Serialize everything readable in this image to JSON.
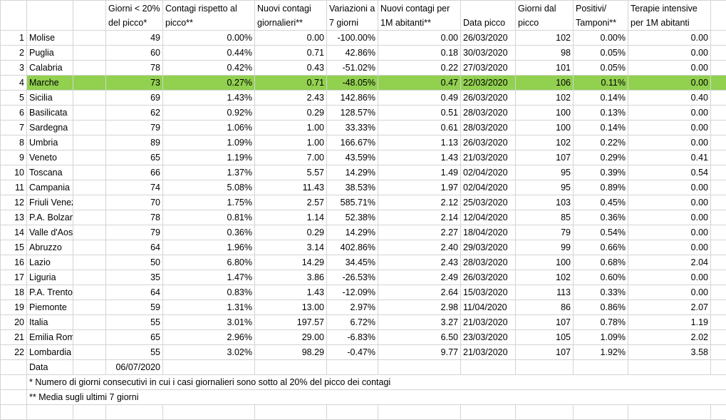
{
  "headers": {
    "days_below": "Giorni < 20% del picco*",
    "contagion_vs_peak": "Contagi rispetto al picco**",
    "new_daily": "Nuovi contagi giornalieri**",
    "var7": "Variazioni a 7 giorni",
    "new_per_1m": "Nuovi contagi per 1M abitanti**",
    "peak_date": "Data picco",
    "days_from_peak": "Giorni dal picco",
    "pos_tests": "Positivi/ Tamponi**",
    "icu_per_1m": "Terapie intensive per 1M abitanti"
  },
  "rows": [
    {
      "idx": "1",
      "region": "Molise",
      "days_below": "49",
      "contagion_vs_peak": "0.00%",
      "new_daily": "0.00",
      "var7": "-100.00%",
      "new_per_1m": "0.00",
      "peak_date": "26/03/2020",
      "days_from_peak": "102",
      "pos_tests": "0.00%",
      "icu_per_1m": "0.00"
    },
    {
      "idx": "2",
      "region": "Puglia",
      "days_below": "60",
      "contagion_vs_peak": "0.44%",
      "new_daily": "0.71",
      "var7": "42.86%",
      "new_per_1m": "0.18",
      "peak_date": "30/03/2020",
      "days_from_peak": "98",
      "pos_tests": "0.05%",
      "icu_per_1m": "0.00"
    },
    {
      "idx": "3",
      "region": "Calabria",
      "days_below": "78",
      "contagion_vs_peak": "0.42%",
      "new_daily": "0.43",
      "var7": "-51.02%",
      "new_per_1m": "0.22",
      "peak_date": "27/03/2020",
      "days_from_peak": "101",
      "pos_tests": "0.05%",
      "icu_per_1m": "0.00"
    },
    {
      "idx": "4",
      "region": "Marche",
      "days_below": "73",
      "contagion_vs_peak": "0.27%",
      "new_daily": "0.71",
      "var7": "-48.05%",
      "new_per_1m": "0.47",
      "peak_date": "22/03/2020",
      "days_from_peak": "106",
      "pos_tests": "0.11%",
      "icu_per_1m": "0.00",
      "highlight": true
    },
    {
      "idx": "5",
      "region": "Sicilia",
      "days_below": "69",
      "contagion_vs_peak": "1.43%",
      "new_daily": "2.43",
      "var7": "142.86%",
      "new_per_1m": "0.49",
      "peak_date": "26/03/2020",
      "days_from_peak": "102",
      "pos_tests": "0.14%",
      "icu_per_1m": "0.40"
    },
    {
      "idx": "6",
      "region": "Basilicata",
      "days_below": "62",
      "contagion_vs_peak": "0.92%",
      "new_daily": "0.29",
      "var7": "128.57%",
      "new_per_1m": "0.51",
      "peak_date": "28/03/2020",
      "days_from_peak": "100",
      "pos_tests": "0.13%",
      "icu_per_1m": "0.00"
    },
    {
      "idx": "7",
      "region": "Sardegna",
      "days_below": "79",
      "contagion_vs_peak": "1.06%",
      "new_daily": "1.00",
      "var7": "33.33%",
      "new_per_1m": "0.61",
      "peak_date": "28/03/2020",
      "days_from_peak": "100",
      "pos_tests": "0.14%",
      "icu_per_1m": "0.00"
    },
    {
      "idx": "8",
      "region": "Umbria",
      "days_below": "89",
      "contagion_vs_peak": "1.09%",
      "new_daily": "1.00",
      "var7": "166.67%",
      "new_per_1m": "1.13",
      "peak_date": "26/03/2020",
      "days_from_peak": "102",
      "pos_tests": "0.22%",
      "icu_per_1m": "0.00"
    },
    {
      "idx": "9",
      "region": "Veneto",
      "days_below": "65",
      "contagion_vs_peak": "1.19%",
      "new_daily": "7.00",
      "var7": "43.59%",
      "new_per_1m": "1.43",
      "peak_date": "21/03/2020",
      "days_from_peak": "107",
      "pos_tests": "0.29%",
      "icu_per_1m": "0.41"
    },
    {
      "idx": "10",
      "region": "Toscana",
      "days_below": "66",
      "contagion_vs_peak": "1.37%",
      "new_daily": "5.57",
      "var7": "14.29%",
      "new_per_1m": "1.49",
      "peak_date": "02/04/2020",
      "days_from_peak": "95",
      "pos_tests": "0.39%",
      "icu_per_1m": "0.54"
    },
    {
      "idx": "11",
      "region": "Campania",
      "days_below": "74",
      "contagion_vs_peak": "5.08%",
      "new_daily": "11.43",
      "var7": "38.53%",
      "new_per_1m": "1.97",
      "peak_date": "02/04/2020",
      "days_from_peak": "95",
      "pos_tests": "0.89%",
      "icu_per_1m": "0.00"
    },
    {
      "idx": "12",
      "region": "Friuli Venezia Giulia",
      "days_below": "70",
      "contagion_vs_peak": "1.75%",
      "new_daily": "2.57",
      "var7": "585.71%",
      "new_per_1m": "2.12",
      "peak_date": "25/03/2020",
      "days_from_peak": "103",
      "pos_tests": "0.45%",
      "icu_per_1m": "0.00"
    },
    {
      "idx": "13",
      "region": "P.A. Bolzano",
      "days_below": "78",
      "contagion_vs_peak": "0.81%",
      "new_daily": "1.14",
      "var7": "52.38%",
      "new_per_1m": "2.14",
      "peak_date": "12/04/2020",
      "days_from_peak": "85",
      "pos_tests": "0.36%",
      "icu_per_1m": "0.00"
    },
    {
      "idx": "14",
      "region": "Valle d'Aosta",
      "days_below": "79",
      "contagion_vs_peak": "0.36%",
      "new_daily": "0.29",
      "var7": "14.29%",
      "new_per_1m": "2.27",
      "peak_date": "18/04/2020",
      "days_from_peak": "79",
      "pos_tests": "0.54%",
      "icu_per_1m": "0.00"
    },
    {
      "idx": "15",
      "region": "Abruzzo",
      "days_below": "64",
      "contagion_vs_peak": "1.96%",
      "new_daily": "3.14",
      "var7": "402.86%",
      "new_per_1m": "2.40",
      "peak_date": "29/03/2020",
      "days_from_peak": "99",
      "pos_tests": "0.66%",
      "icu_per_1m": "0.00"
    },
    {
      "idx": "16",
      "region": "Lazio",
      "days_below": "50",
      "contagion_vs_peak": "6.80%",
      "new_daily": "14.29",
      "var7": "34.45%",
      "new_per_1m": "2.43",
      "peak_date": "28/03/2020",
      "days_from_peak": "100",
      "pos_tests": "0.68%",
      "icu_per_1m": "2.04"
    },
    {
      "idx": "17",
      "region": "Liguria",
      "days_below": "35",
      "contagion_vs_peak": "1.47%",
      "new_daily": "3.86",
      "var7": "-26.53%",
      "new_per_1m": "2.49",
      "peak_date": "26/03/2020",
      "days_from_peak": "102",
      "pos_tests": "0.60%",
      "icu_per_1m": "0.00"
    },
    {
      "idx": "18",
      "region": "P.A. Trento",
      "days_below": "64",
      "contagion_vs_peak": "0.83%",
      "new_daily": "1.43",
      "var7": "-12.09%",
      "new_per_1m": "2.64",
      "peak_date": "15/03/2020",
      "days_from_peak": "113",
      "pos_tests": "0.33%",
      "icu_per_1m": "0.00"
    },
    {
      "idx": "19",
      "region": "Piemonte",
      "days_below": "59",
      "contagion_vs_peak": "1.31%",
      "new_daily": "13.00",
      "var7": "2.97%",
      "new_per_1m": "2.98",
      "peak_date": "11/04/2020",
      "days_from_peak": "86",
      "pos_tests": "0.86%",
      "icu_per_1m": "2.07"
    },
    {
      "idx": "20",
      "region": "Italia",
      "days_below": "55",
      "contagion_vs_peak": "3.01%",
      "new_daily": "197.57",
      "var7": "6.72%",
      "new_per_1m": "3.27",
      "peak_date": "21/03/2020",
      "days_from_peak": "107",
      "pos_tests": "0.78%",
      "icu_per_1m": "1.19"
    },
    {
      "idx": "21",
      "region": "Emilia Romagna",
      "days_below": "65",
      "contagion_vs_peak": "2.96%",
      "new_daily": "29.00",
      "var7": "-6.83%",
      "new_per_1m": "6.50",
      "peak_date": "23/03/2020",
      "days_from_peak": "105",
      "pos_tests": "1.09%",
      "icu_per_1m": "2.02"
    },
    {
      "idx": "22",
      "region": "Lombardia",
      "days_below": "55",
      "contagion_vs_peak": "3.02%",
      "new_daily": "98.29",
      "var7": "-0.47%",
      "new_per_1m": "9.77",
      "peak_date": "21/03/2020",
      "days_from_peak": "107",
      "pos_tests": "1.92%",
      "icu_per_1m": "3.58"
    }
  ],
  "footer": {
    "date_label": "Data",
    "date_value": "06/07/2020",
    "note1": "* Numero di giorni consecutivi in cui i casi giornalieri sono sotto al 20% del picco dei contagi",
    "note2": "** Media sugli ultimi 7 giorni"
  },
  "colors": {
    "highlight": "#92d050",
    "gridline": "#d4d4d4"
  }
}
